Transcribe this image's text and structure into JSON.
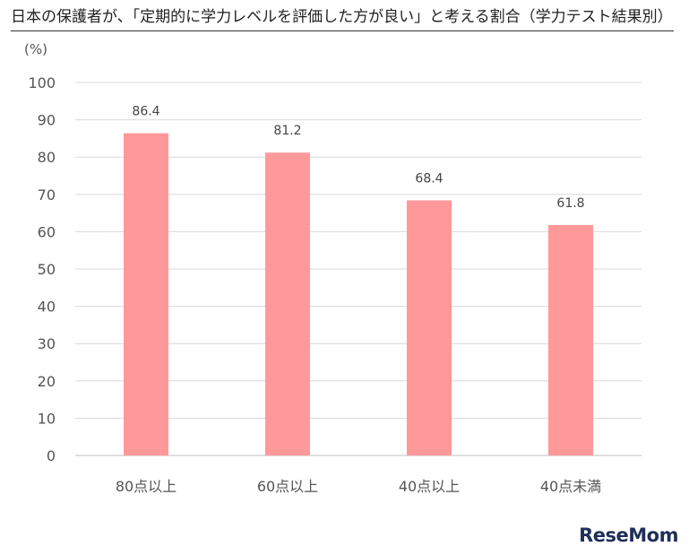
{
  "chart_data": {
    "type": "bar",
    "title": "日本の保護者が、「定期的に学力レベルを評価した方が良い」と考える割合（学力テスト結果別）",
    "unit_label": "(%)",
    "categories": [
      "80点以上",
      "60点以上",
      "40点以上",
      "40点未満"
    ],
    "values": [
      86.4,
      81.2,
      68.4,
      61.8
    ],
    "value_labels": [
      "86.4",
      "81.2",
      "68.4",
      "61.8"
    ],
    "ylim": [
      0,
      100
    ],
    "yticks": [
      0,
      10,
      20,
      30,
      40,
      50,
      60,
      70,
      80,
      90,
      100
    ],
    "ytick_labels": [
      "0",
      "10",
      "20",
      "30",
      "40",
      "50",
      "60",
      "70",
      "80",
      "90",
      "100"
    ],
    "grid": true,
    "legend": "none",
    "colors": {
      "bar": "#ff9999",
      "grid": "#d9d9d9",
      "axis": "#bfbfbf"
    }
  },
  "brand": {
    "logo_text": "ReseMom"
  }
}
